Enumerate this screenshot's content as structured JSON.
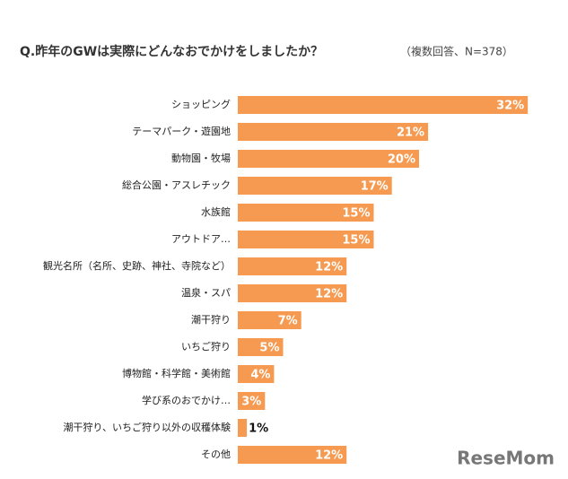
{
  "chart_data": {
    "type": "bar",
    "orientation": "horizontal",
    "title": "Q.昨年のGWは実際にどんなおでかけをしましたか？",
    "subtitle": "（複数回答、N=378）",
    "categories": [
      "ショッピング",
      "テーマパーク・遊園地",
      "動物園・牧場",
      "総合公園・アスレチック",
      "水族館",
      "アウトドア…",
      "観光名所（名所、史跡、神社、寺院など）",
      "温泉・スパ",
      "潮干狩り",
      "いちご狩り",
      "博物館・科学館・美術館",
      "学び系のおでかけ…",
      "潮干狩り、いちご狩り以外の収穫体験",
      "その他"
    ],
    "values": [
      32,
      21,
      20,
      17,
      15,
      15,
      12,
      12,
      7,
      5,
      4,
      3,
      1,
      12
    ],
    "value_labels": [
      "32%",
      "21%",
      "20%",
      "17%",
      "15%",
      "15%",
      "12%",
      "12%",
      "7%",
      "5%",
      "4%",
      "3%",
      "1%",
      "12%"
    ],
    "color": "#f59a50",
    "watermark": "ReseMom"
  }
}
